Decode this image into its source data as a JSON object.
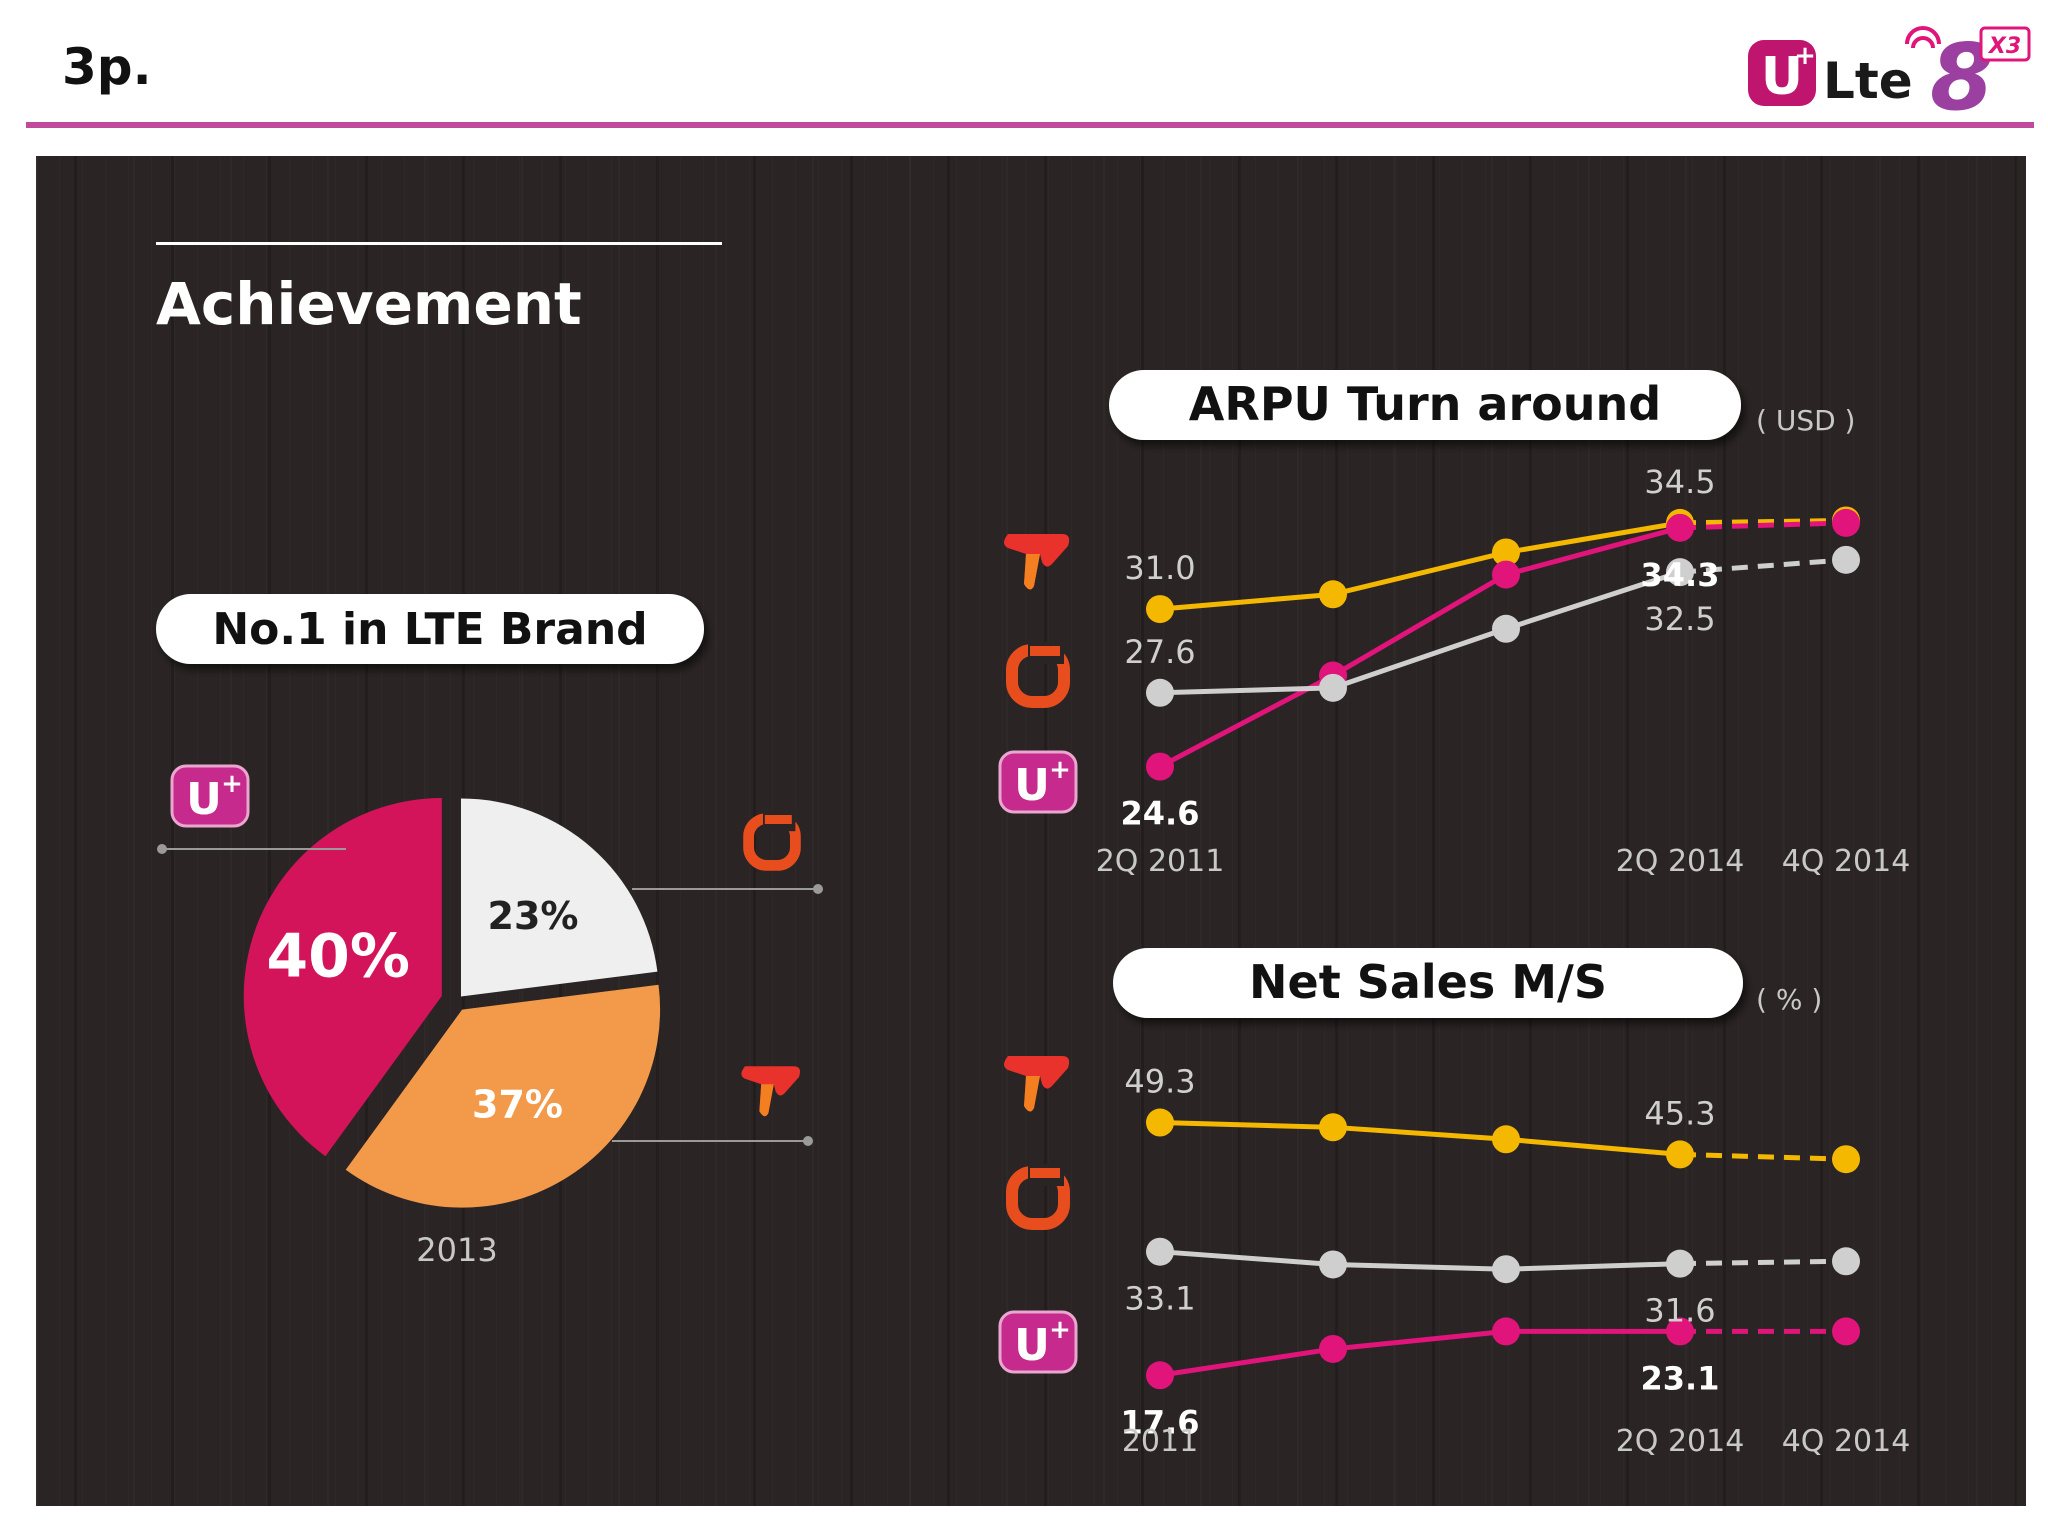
{
  "header": {
    "page_label": "3p.",
    "logo": {
      "icon": "uplus-lte8-logo",
      "text": "Lte",
      "badge": "X3"
    }
  },
  "section_title": "Achievement",
  "colors": {
    "accent_rule": "#c04a9c",
    "uplus": "#e0147a",
    "skt": "#f5b800",
    "kt": "#cfcfcf",
    "pie_uplus": "#d4145a",
    "pie_kt": "#efefef",
    "pie_skt": "#f29a4a"
  },
  "chart_data": [
    {
      "type": "pie",
      "title": "No.1 in LTE Brand",
      "xlabel": "2013",
      "slices": [
        {
          "name": "LG U+",
          "icon": "uplus-icon",
          "value": 40,
          "label": "40%"
        },
        {
          "name": "KT",
          "icon": "kt-icon",
          "value": 23,
          "label": "23%"
        },
        {
          "name": "SKT",
          "icon": "skt-icon",
          "value": 37,
          "label": "37%"
        }
      ]
    },
    {
      "type": "line",
      "title": "ARPU Turn around",
      "unit": "( USD )",
      "categories": [
        "2Q 2011",
        "",
        "",
        "2Q 2014",
        "4Q 2014"
      ],
      "ylim": [
        23,
        36
      ],
      "dashed_from_index": 3,
      "series": [
        {
          "name": "SKT",
          "icon": "skt-icon",
          "color": "#f5b800",
          "values": [
            31.0,
            31.6,
            33.3,
            34.5,
            34.6
          ]
        },
        {
          "name": "LG U+",
          "icon": "uplus-icon",
          "color": "#e0147a",
          "values": [
            24.6,
            28.3,
            32.4,
            34.3,
            34.5
          ]
        },
        {
          "name": "KT",
          "icon": "kt-icon",
          "color": "#cfcfcf",
          "values": [
            27.6,
            27.8,
            30.2,
            32.5,
            33.0
          ]
        }
      ],
      "labels": [
        {
          "series": "SKT",
          "index": 0,
          "text": "31.0",
          "pos": "above",
          "bold": false
        },
        {
          "series": "SKT",
          "index": 3,
          "text": "34.5",
          "pos": "above",
          "bold": false
        },
        {
          "series": "KT",
          "index": 0,
          "text": "27.6",
          "pos": "above",
          "bold": false
        },
        {
          "series": "KT",
          "index": 3,
          "text": "32.5",
          "pos": "below",
          "bold": false
        },
        {
          "series": "LG U+",
          "index": 0,
          "text": "24.6",
          "pos": "below",
          "bold": true
        },
        {
          "series": "LG U+",
          "index": 3,
          "text": "34.3",
          "pos": "below",
          "bold": true
        }
      ]
    },
    {
      "type": "line",
      "title": "Net Sales M/S",
      "unit": "( % )",
      "categories": [
        "2011",
        "",
        "",
        "2Q 2014",
        "4Q 2014"
      ],
      "ylim": [
        15,
        52
      ],
      "dashed_from_index": 3,
      "series": [
        {
          "name": "SKT",
          "icon": "skt-icon",
          "color": "#f5b800",
          "values": [
            49.3,
            48.7,
            47.2,
            45.3,
            44.7
          ]
        },
        {
          "name": "KT",
          "icon": "kt-icon",
          "color": "#cfcfcf",
          "values": [
            33.1,
            31.5,
            30.9,
            31.6,
            31.9
          ]
        },
        {
          "name": "LG U+",
          "icon": "uplus-icon",
          "color": "#e0147a",
          "values": [
            17.6,
            20.9,
            23.1,
            23.1,
            23.1
          ]
        }
      ],
      "labels": [
        {
          "series": "SKT",
          "index": 0,
          "text": "49.3",
          "pos": "above",
          "bold": false
        },
        {
          "series": "SKT",
          "index": 3,
          "text": "45.3",
          "pos": "above",
          "bold": false
        },
        {
          "series": "KT",
          "index": 0,
          "text": "33.1",
          "pos": "below",
          "bold": false
        },
        {
          "series": "KT",
          "index": 3,
          "text": "31.6",
          "pos": "below",
          "bold": false
        },
        {
          "series": "LG U+",
          "index": 0,
          "text": "17.6",
          "pos": "below",
          "bold": true
        },
        {
          "series": "LG U+",
          "index": 3,
          "text": "23.1",
          "pos": "below",
          "bold": true
        }
      ]
    }
  ]
}
